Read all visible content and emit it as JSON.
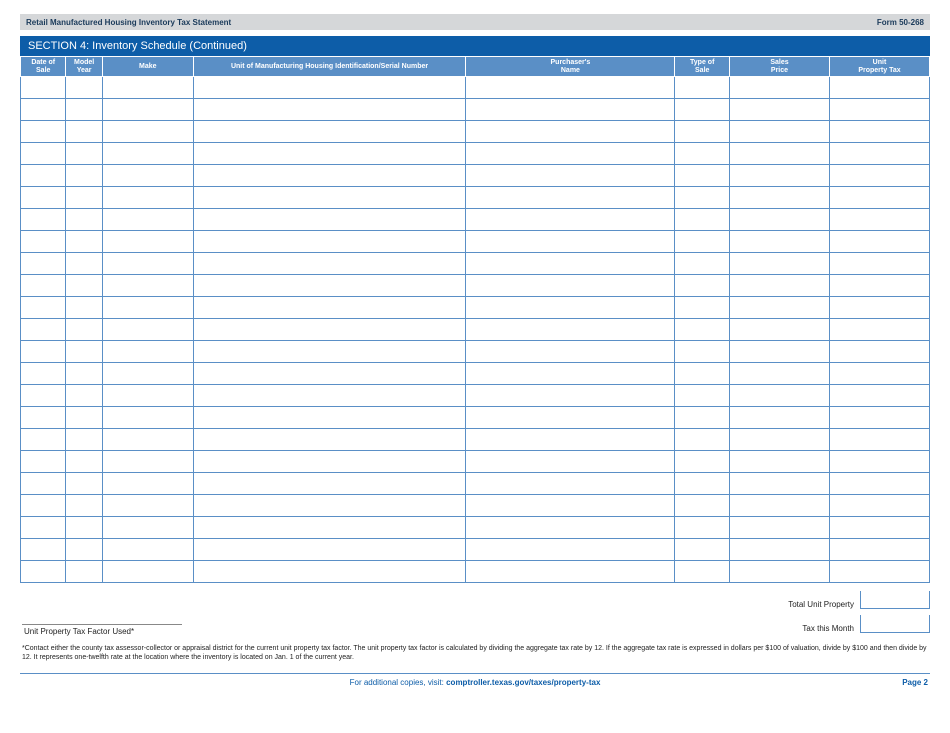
{
  "header": {
    "title_left": "Retail Manufactured Housing Inventory Tax Statement",
    "title_right": "Form 50-268"
  },
  "section": {
    "title": "SECTION 4: Inventory Schedule (Continued)"
  },
  "table": {
    "columns": [
      {
        "label_l1": "Date of",
        "label_l2": "Sale",
        "width": "5%"
      },
      {
        "label_l1": "Model",
        "label_l2": "Year",
        "width": "4%"
      },
      {
        "label_l1": "",
        "label_l2": "Make",
        "width": "10%"
      },
      {
        "label_l1": "",
        "label_l2": "Unit of Manufacturing Housing Identification/Serial Number",
        "width": "30%"
      },
      {
        "label_l1": "Purchaser's",
        "label_l2": "Name",
        "width": "23%"
      },
      {
        "label_l1": "Type of",
        "label_l2": "Sale",
        "width": "6%"
      },
      {
        "label_l1": "Sales",
        "label_l2": "Price",
        "width": "11%"
      },
      {
        "label_l1": "Unit",
        "label_l2": "Property Tax",
        "width": "11%"
      }
    ],
    "row_count": 23
  },
  "totals": {
    "total_unit_label": "Total Unit Property",
    "tax_month_label": "Tax this Month"
  },
  "factor": {
    "label": "Unit Property Tax Factor Used*"
  },
  "footnote": {
    "text": "*Contact either the county tax assessor-collector or appraisal district for the current unit property tax factor. The unit property tax factor is calculated by dividing the aggregate tax rate by 12. If the aggregate tax rate is expressed in dollars per $100 of valuation, divide by $100 and then divide by 12. It represents one-twelfth rate at the location where the inventory is located on Jan. 1 of the current year."
  },
  "footer": {
    "visit_prefix": "For additional copies, visit: ",
    "link": "comptroller.texas.gov/taxes/property-tax",
    "page": "Page 2"
  }
}
